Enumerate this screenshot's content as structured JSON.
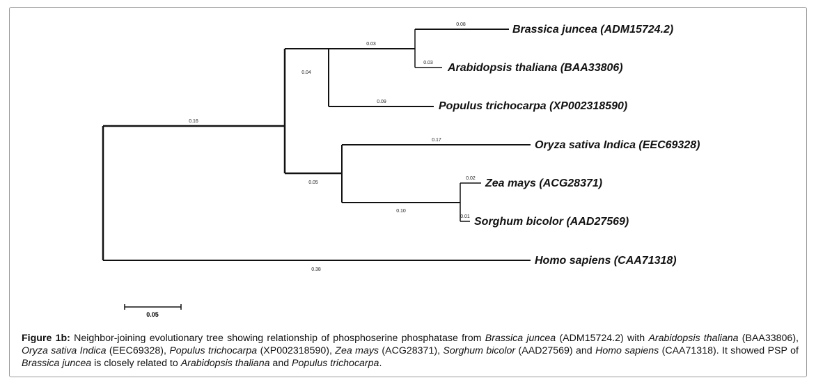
{
  "tree": {
    "branches": [
      {
        "length": "0.16"
      },
      {
        "length": "0.04"
      },
      {
        "length": "0.03"
      },
      {
        "length": "0.08"
      },
      {
        "length": "0.03"
      },
      {
        "length": "0.09"
      },
      {
        "length": "0.05"
      },
      {
        "length": "0.17"
      },
      {
        "length": "0.10"
      },
      {
        "length": "0.02"
      },
      {
        "length": "0.01"
      },
      {
        "length": "0.38"
      }
    ],
    "leaves": [
      {
        "label": "Brassica juncea (ADM15724.2)"
      },
      {
        "label": "Arabidopsis thaliana (BAA33806)"
      },
      {
        "label": "Populus trichocarpa (XP002318590)"
      },
      {
        "label": "Oryza sativa Indica (EEC69328)"
      },
      {
        "label": "Zea mays (ACG28371)"
      },
      {
        "label": "Sorghum bicolor (AAD27569)"
      },
      {
        "label": "Homo sapiens (CAA71318)"
      }
    ],
    "scale_bar": "0.05"
  },
  "caption": {
    "label": "Figure 1b:",
    "segments": [
      {
        "text": " Neighbor-joining evolutionary tree showing relationship of phosphoserine phosphatase from ",
        "style": "normal"
      },
      {
        "text": "Brassica juncea",
        "style": "italic"
      },
      {
        "text": " (ADM15724.2) with ",
        "style": "normal"
      },
      {
        "text": "Arabidopsis thaliana",
        "style": "italic"
      },
      {
        "text": " (BAA33806), ",
        "style": "normal"
      },
      {
        "text": "Oryza sativa Indica",
        "style": "italic"
      },
      {
        "text": " (EEC69328), ",
        "style": "normal"
      },
      {
        "text": "Populus trichocarpa",
        "style": "italic"
      },
      {
        "text": " (XP002318590), ",
        "style": "normal"
      },
      {
        "text": "Zea mays",
        "style": "italic"
      },
      {
        "text": " (ACG28371), ",
        "style": "normal"
      },
      {
        "text": "Sorghum bicolor",
        "style": "italic"
      },
      {
        "text": " (AAD27569) and ",
        "style": "normal"
      },
      {
        "text": "Homo sapiens",
        "style": "italic"
      },
      {
        "text": " (CAA71318). It showed PSP of ",
        "style": "normal"
      },
      {
        "text": "Brassica juncea",
        "style": "italic"
      },
      {
        "text": " is closely related to ",
        "style": "normal"
      },
      {
        "text": "Arabidopsis thaliana",
        "style": "italic"
      },
      {
        "text": " and ",
        "style": "normal"
      },
      {
        "text": "Populus trichocarpa",
        "style": "italic"
      },
      {
        "text": ".",
        "style": "normal"
      }
    ]
  }
}
